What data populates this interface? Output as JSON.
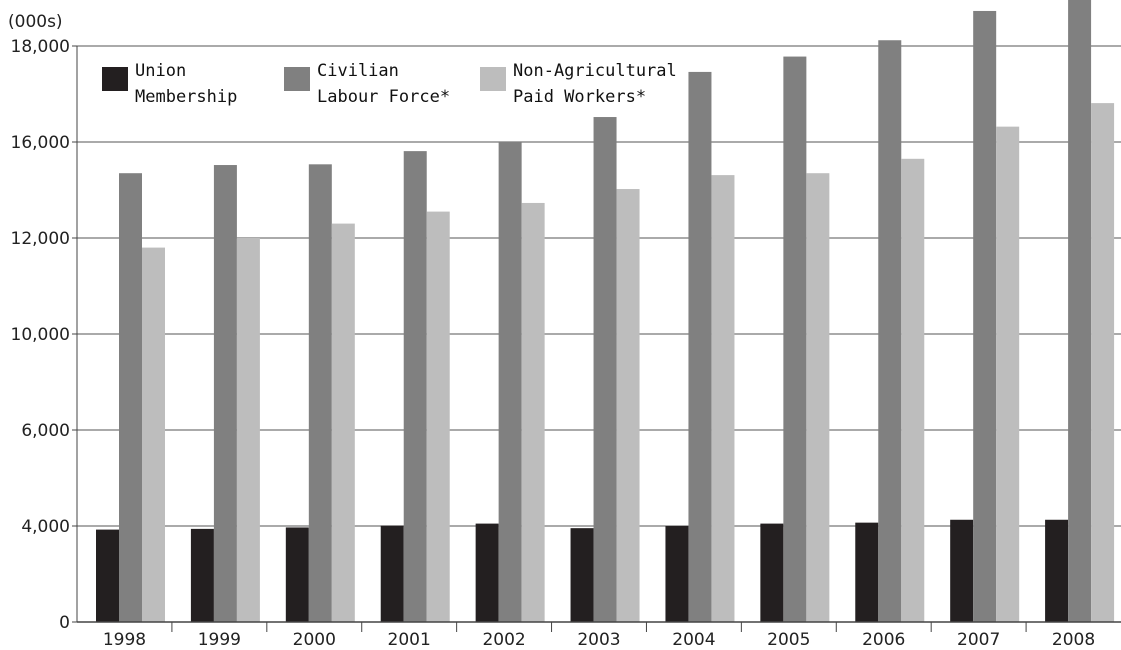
{
  "chart_data": {
    "type": "bar",
    "unit_label": "(000s)",
    "categories": [
      "1998",
      "1999",
      "2000",
      "2001",
      "2002",
      "2003",
      "2004",
      "2005",
      "2006",
      "2007",
      "2008"
    ],
    "y_ticks": [
      {
        "value": 0,
        "label": "0"
      },
      {
        "value": 4000,
        "label": "4,000"
      },
      {
        "value": 6000,
        "label": "6,000"
      },
      {
        "value": 10000,
        "label": "10,000"
      },
      {
        "value": 12000,
        "label": "12,000"
      },
      {
        "value": 16000,
        "label": "16,000"
      },
      {
        "value": 18000,
        "label": "18,000"
      }
    ],
    "series": [
      {
        "name": "Union Membership",
        "legend_lines": [
          "Union",
          "Membership"
        ],
        "color": "#231f20",
        "values": [
          3850,
          3880,
          3940,
          4010,
          4050,
          3910,
          4000,
          4050,
          4070,
          4130,
          4130
        ]
      },
      {
        "name": "Civilian Labour Force*",
        "legend_lines": [
          "Civilian",
          "Labour Force*"
        ],
        "color": "#808080",
        "values": [
          14700,
          15040,
          15070,
          15620,
          16000,
          16520,
          17460,
          17780,
          18120,
          18730,
          19640
        ]
      },
      {
        "name": "Non-Agricultural Paid Workers*",
        "legend_lines": [
          "Non-Agricultural",
          "Paid Workers*"
        ],
        "color": "#bdbdbd",
        "values": [
          11800,
          12000,
          12600,
          13100,
          13460,
          14040,
          14620,
          14700,
          15300,
          16320,
          16810
        ]
      }
    ],
    "grid": true,
    "legend_position": "top-left"
  }
}
